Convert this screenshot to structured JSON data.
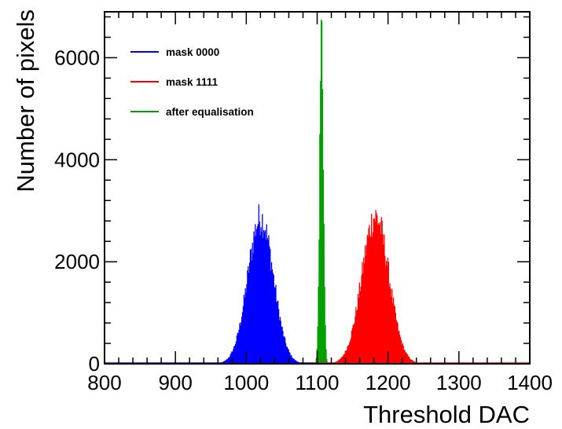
{
  "chart_data": {
    "type": "bar",
    "title": "",
    "xlabel": "Threshold DAC",
    "ylabel": "Number of pixels",
    "xlim": [
      800,
      1400
    ],
    "ylim": [
      0,
      6900
    ],
    "x_ticks": [
      800,
      900,
      1000,
      1100,
      1200,
      1300,
      1400
    ],
    "y_ticks": [
      0,
      2000,
      4000,
      6000
    ],
    "x_tick_labels": [
      "800",
      "900",
      "1000",
      "1100",
      "1200",
      "1300",
      "1400"
    ],
    "y_tick_labels": [
      "0",
      "2000",
      "4000",
      "6000"
    ],
    "grid": false,
    "legend_position": "top-left",
    "series": [
      {
        "name": "mask 0000",
        "color": "#0000ff",
        "distribution": "gaussian",
        "mean": 1020,
        "sigma": 18,
        "peak": 2850,
        "x_range": [
          960,
          1090
        ]
      },
      {
        "name": "mask 1111",
        "color": "#ff0000",
        "distribution": "gaussian",
        "mean": 1182,
        "sigma": 19,
        "peak": 2880,
        "x_range": [
          1115,
          1255
        ]
      },
      {
        "name": "after equalisation",
        "color": "#00a000",
        "distribution": "gaussian",
        "mean": 1106,
        "sigma": 2.6,
        "peak": 6650,
        "x_range": [
          1095,
          1118
        ]
      }
    ]
  }
}
